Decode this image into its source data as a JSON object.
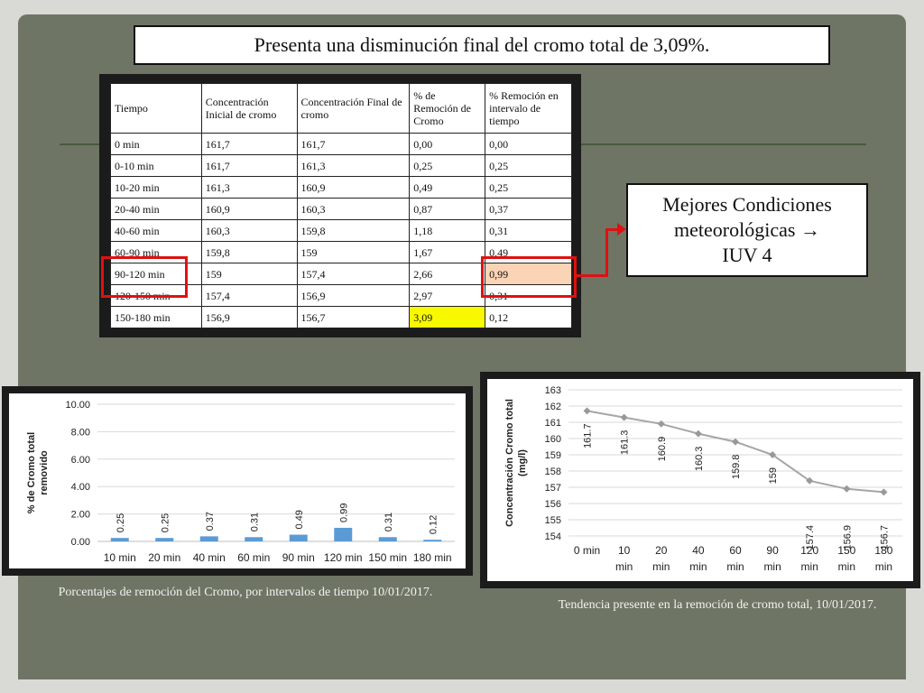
{
  "title": "Presenta una disminución final del cromo total de 3,09%.",
  "table": {
    "headers": [
      "Tiempo",
      "Concentración Inicial de cromo",
      "Concentración Final de cromo",
      "% de Remoción de Cromo",
      "% Remoción en intervalo de tiempo"
    ],
    "rows": [
      [
        "0 min",
        "161,7",
        "161,7",
        "0,00",
        "0,00"
      ],
      [
        "0-10 min",
        "161,7",
        "161,3",
        "0,25",
        "0,25"
      ],
      [
        "10-20 min",
        "161,3",
        "160,9",
        "0,49",
        "0,25"
      ],
      [
        "20-40 min",
        "160,9",
        "160,3",
        "0,87",
        "0,37"
      ],
      [
        "40-60 min",
        "160,3",
        "159,8",
        "1,18",
        "0,31"
      ],
      [
        "60-90 min",
        "159,8",
        "159",
        "1,67",
        "0,49"
      ],
      [
        "90-120 min",
        "159",
        "157,4",
        "2,66",
        "0,99"
      ],
      [
        "120-150 min",
        "157,4",
        "156,9",
        "2,97",
        "0,31"
      ],
      [
        "150-180 min",
        "156,9",
        "156,7",
        "3,09",
        "0,12"
      ]
    ]
  },
  "callout": {
    "line1": "Mejores Condiciones",
    "line2": "meteorológicas →",
    "line3": "IUV 4"
  },
  "captions": {
    "bar": "Porcentajes de remoción del Cromo, por intervalos de tiempo 10/01/2017.",
    "line": "Tendencia presente en la remoción de cromo total, 10/01/2017."
  },
  "colors": {
    "slide_bg": "#6f7565",
    "bar": "#5b9bd5",
    "line": "#a6a6a6",
    "highlight_red": "#e01010",
    "highlight_peach": "#fbd3b5",
    "highlight_yellow": "#f8f800"
  },
  "chart_data": [
    {
      "type": "bar",
      "ylabel": "% de Cromo total removido",
      "xlabel": "",
      "categories": [
        "10 min",
        "20 min",
        "40 min",
        "60 min",
        "90 min",
        "120 min",
        "150 min",
        "180 min"
      ],
      "values": [
        0.25,
        0.25,
        0.37,
        0.31,
        0.49,
        0.99,
        0.31,
        0.12
      ],
      "data_labels": [
        "0.25",
        "0.25",
        "0.37",
        "0.31",
        "0.49",
        "0.99",
        "0.31",
        "0.12"
      ],
      "ylim": [
        0,
        10
      ],
      "yticks": [
        "0.00",
        "2.00",
        "4.00",
        "6.00",
        "8.00",
        "10.00"
      ],
      "grid": true
    },
    {
      "type": "line",
      "ylabel": "Concentración Cromo total (mg/l)",
      "xlabel": "",
      "categories": [
        "0 min",
        "10 min",
        "20 min",
        "40 min",
        "60 min",
        "90 min",
        "120 min",
        "150 min",
        "180 min"
      ],
      "values": [
        161.7,
        161.3,
        160.9,
        160.3,
        159.8,
        159,
        157.4,
        156.9,
        156.7
      ],
      "data_labels": [
        "161.7",
        "161.3",
        "160.9",
        "160.3",
        "159.8",
        "159",
        "157.4",
        "156.9",
        "156.7"
      ],
      "ylim": [
        154,
        163
      ],
      "yticks": [
        "154",
        "155",
        "156",
        "157",
        "158",
        "159",
        "160",
        "161",
        "162",
        "163"
      ],
      "grid": true
    }
  ]
}
